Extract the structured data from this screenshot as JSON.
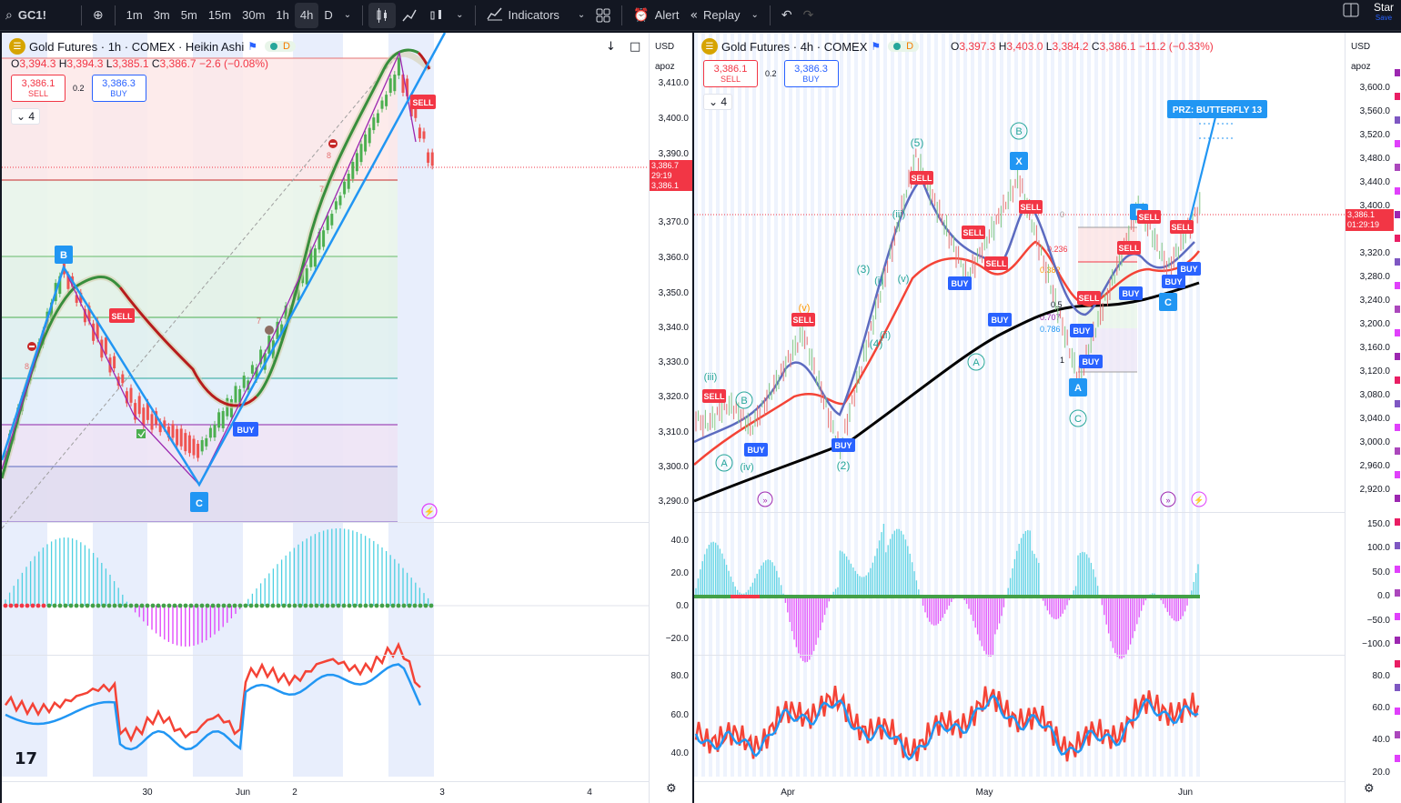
{
  "toolbar": {
    "search_icon": "search-icon",
    "symbol": "GC1!",
    "add_icon": "plus-circle-icon",
    "intervals": [
      "1m",
      "3m",
      "5m",
      "15m",
      "30m",
      "1h",
      "4h",
      "D"
    ],
    "active_interval": "4h",
    "indicators_label": "Indicators",
    "alert_label": "Alert",
    "replay_label": "Replay",
    "star_label": "Star",
    "save_label": "Save"
  },
  "left_chart": {
    "title": "Gold Futures · 1h · COMEX · Heikin Ashi",
    "d_badge": "D",
    "ohlc": {
      "o_label": "O",
      "o": "3,394.3",
      "h_label": "H",
      "h": "3,394.3",
      "l_label": "L",
      "l": "3,385.1",
      "c_label": "C",
      "c": "3,386.7",
      "change": "−2.6 (−0.08%)"
    },
    "sell_price": "3,386.1",
    "sell_label": "SELL",
    "spread": "0.2",
    "buy_price": "3,386.3",
    "buy_label": "BUY",
    "collapse_count": "4",
    "currency": "USD",
    "script": "apoz",
    "price_ticks": [
      "3,410.0",
      "3,400.0",
      "3,390.0",
      "3,380.0",
      "3,370.0",
      "3,360.0",
      "3,350.0",
      "3,340.0",
      "3,330.0",
      "3,320.0",
      "3,310.0",
      "3,300.0",
      "3,290.0"
    ],
    "current_price": "3,386.7",
    "countdown": "29:19",
    "current_price_2": "3,386.1",
    "osc_ticks": [
      "40.0",
      "20.0",
      "0.0",
      "−20.0"
    ],
    "rsi_ticks": [
      "80.0",
      "60.0",
      "40.0"
    ],
    "x_labels": [
      "30",
      "Jun",
      "2",
      "3",
      "4"
    ],
    "wave_labels": [
      "B",
      "C"
    ],
    "signal_labels": [
      "SELL",
      "BUY",
      "SELL"
    ],
    "small_numbers": [
      "8",
      "7",
      "8",
      "7"
    ]
  },
  "right_chart": {
    "title": "Gold Futures · 4h · COMEX",
    "d_badge": "D",
    "ohlc": {
      "o_label": "O",
      "o": "3,397.3",
      "h_label": "H",
      "h": "3,403.0",
      "l_label": "L",
      "l": "3,384.2",
      "c_label": "C",
      "c": "3,386.1",
      "change": "−11.2 (−0.33%)"
    },
    "sell_price": "3,386.1",
    "sell_label": "SELL",
    "spread": "0.2",
    "buy_price": "3,386.3",
    "buy_label": "BUY",
    "collapse_count": "4",
    "currency": "USD",
    "script": "apoz",
    "price_ticks": [
      "3,600.0",
      "3,560.0",
      "3,520.0",
      "3,480.0",
      "3,440.0",
      "3,400.0",
      "3,360.0",
      "3,320.0",
      "3,280.0",
      "3,240.0",
      "3,200.0",
      "3,160.0",
      "3,120.0",
      "3,080.0",
      "3,040.0",
      "3,000.0",
      "2,960.0",
      "2,920.0"
    ],
    "current_price": "3,386.1",
    "countdown": "01:29:19",
    "osc_ticks": [
      "150.0",
      "100.0",
      "50.0",
      "0.0",
      "−50.0",
      "−100.0"
    ],
    "rsi_ticks": [
      "80.0",
      "60.0",
      "40.0",
      "20.0"
    ],
    "x_labels": [
      "Apr",
      "May",
      "Jun"
    ],
    "prz_label": "PRZ: BUTTERFLY 13",
    "wave_labels": [
      "(5)",
      "B",
      "X",
      "(iii)",
      "(3)",
      "(v)",
      "(i)",
      "(iv)",
      "(4)",
      "(ii)",
      "(iii)",
      "B",
      "A",
      "(iv)",
      "(2)",
      "A",
      "C",
      "(v)",
      "A",
      "C",
      "B"
    ],
    "fib_labels": [
      "0",
      "0.236",
      "0.382",
      "0.5",
      "0.707",
      "0.786",
      "1"
    ]
  },
  "colors": {
    "sell": "#f23645",
    "buy": "#2962ff",
    "up": "#4caf50",
    "down": "#f23645",
    "zigzag": "#2196f3",
    "osc_up": "#26c6da",
    "osc_down": "#e040fb",
    "rsi_red": "#f44336",
    "rsi_blue": "#2196f3"
  }
}
